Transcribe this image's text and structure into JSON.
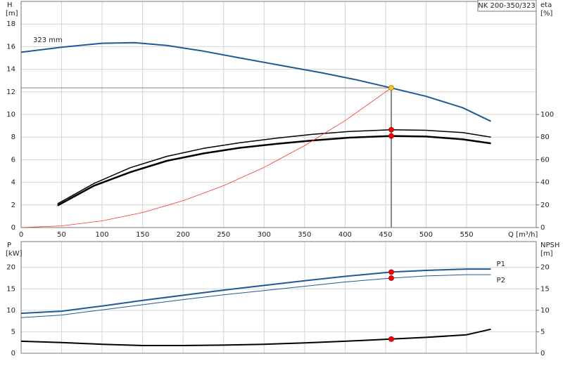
{
  "chart_data": [
    {
      "type": "line",
      "title": "NK 200-350/323",
      "annotation": "323 mm",
      "xlabel": "Q [m³/h]",
      "ylabel": "H",
      "yunit": "[m]",
      "y2label": "eta",
      "y2unit": "[%]",
      "xlim": [
        0,
        636
      ],
      "xticks": [
        0,
        50,
        100,
        150,
        200,
        250,
        300,
        350,
        400,
        450,
        500,
        550
      ],
      "ylim": [
        0,
        20
      ],
      "yticks": [
        0,
        2,
        4,
        6,
        8,
        10,
        12,
        14,
        16,
        18
      ],
      "y2lim": [
        0,
        200
      ],
      "y2ticks": [
        0,
        20,
        40,
        60,
        80,
        100
      ],
      "grid": true,
      "series": [
        {
          "color": "#1f5a96",
          "width": 2,
          "x": [
            0,
            50,
            100,
            140,
            180,
            225,
            270,
            320,
            370,
            415,
            457,
            500,
            545,
            580
          ],
          "values": [
            15.5,
            15.95,
            16.3,
            16.35,
            16.1,
            15.6,
            15.0,
            14.35,
            13.7,
            13.05,
            12.35,
            11.6,
            10.6,
            9.4
          ]
        },
        {
          "color": "#000000",
          "width": 1.5,
          "axis": "y2",
          "x": [
            45,
            90,
            135,
            180,
            225,
            270,
            315,
            360,
            405,
            457,
            500,
            545,
            580
          ],
          "values": [
            21,
            39,
            53,
            63,
            70,
            75,
            79,
            82.5,
            85,
            86.5,
            86,
            84,
            80
          ]
        },
        {
          "color": "#000000",
          "width": 2.5,
          "axis": "y2",
          "x": [
            45,
            90,
            135,
            180,
            225,
            270,
            315,
            360,
            405,
            457,
            500,
            545,
            580
          ],
          "values": [
            19.5,
            37,
            49,
            59,
            65.5,
            70.5,
            74,
            77,
            79.5,
            81,
            80.5,
            78,
            74.5
          ]
        },
        {
          "color": "#ff3030",
          "width": 0.8,
          "x": [
            0,
            50,
            100,
            150,
            200,
            250,
            300,
            350,
            400,
            457
          ],
          "values": [
            0,
            0.15,
            0.59,
            1.33,
            2.37,
            3.7,
            5.32,
            7.24,
            9.46,
            12.35
          ]
        }
      ],
      "markers": [
        {
          "x": 457,
          "y": 12.35,
          "color": "#f5c518",
          "guides": true
        },
        {
          "x": 457,
          "y": 86.5,
          "color": "#ff0000",
          "axis": "y2"
        },
        {
          "x": 457,
          "y": 81,
          "color": "#ff0000",
          "axis": "y2"
        }
      ]
    },
    {
      "type": "line",
      "ylabel": "P",
      "yunit": "[kW]",
      "y2label": "NPSH",
      "y2unit": "[m]",
      "ylim": [
        0,
        26
      ],
      "yticks": [
        0,
        5,
        10,
        15,
        20
      ],
      "y2lim": [
        0,
        26
      ],
      "y2ticks": [
        0,
        5,
        10,
        15,
        20
      ],
      "grid": true,
      "series": [
        {
          "name": "P1",
          "color": "#1f5a96",
          "width": 2,
          "x": [
            0,
            50,
            100,
            150,
            200,
            250,
            300,
            350,
            400,
            457,
            500,
            550,
            580
          ],
          "values": [
            9.3,
            9.8,
            11,
            12.3,
            13.5,
            14.7,
            15.8,
            16.9,
            17.9,
            18.9,
            19.3,
            19.6,
            19.6
          ]
        },
        {
          "name": "P2",
          "color": "#1f5a96",
          "width": 1,
          "x": [
            0,
            50,
            100,
            150,
            200,
            250,
            300,
            350,
            400,
            457,
            500,
            550,
            580
          ],
          "values": [
            8.3,
            8.9,
            10.1,
            11.3,
            12.5,
            13.6,
            14.6,
            15.6,
            16.6,
            17.5,
            18,
            18.3,
            18.3
          ]
        },
        {
          "color": "#000000",
          "width": 2,
          "axis": "y2",
          "x": [
            0,
            50,
            100,
            150,
            200,
            250,
            300,
            350,
            400,
            457,
            500,
            550,
            580
          ],
          "values": [
            2.8,
            2.5,
            2.1,
            1.8,
            1.8,
            1.9,
            2.1,
            2.4,
            2.8,
            3.3,
            3.7,
            4.3,
            5.6
          ]
        }
      ],
      "markers": [
        {
          "x": 457,
          "y": 18.9,
          "color": "#ff0000"
        },
        {
          "x": 457,
          "y": 17.5,
          "color": "#ff0000"
        },
        {
          "x": 457,
          "y": 3.3,
          "color": "#ff0000",
          "axis": "y2"
        }
      ]
    }
  ]
}
